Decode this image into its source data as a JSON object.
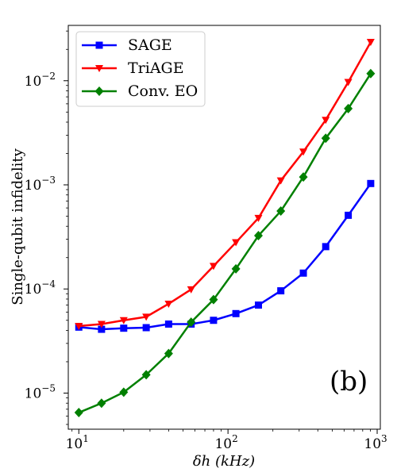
{
  "chart_data": {
    "type": "line",
    "xlabel": "δh (kHz)",
    "ylabel": "Single-qubit infidelity",
    "xscale": "log",
    "yscale": "log",
    "xlim": [
      8.5,
      1050
    ],
    "ylim": [
      4.5e-06,
      0.034
    ],
    "grid": false,
    "legend_position": "top-left",
    "annotation": "(b)",
    "x_ticks": [
      {
        "value": 10,
        "base": "10",
        "exp": "1"
      },
      {
        "value": 100,
        "base": "10",
        "exp": "2"
      },
      {
        "value": 1000,
        "base": "10",
        "exp": "3"
      }
    ],
    "y_ticks": [
      {
        "value": 1e-05,
        "base": "10",
        "exp": "−5"
      },
      {
        "value": 0.0001,
        "base": "10",
        "exp": "−4"
      },
      {
        "value": 0.001,
        "base": "10",
        "exp": "−3"
      },
      {
        "value": 0.01,
        "base": "10",
        "exp": "−2"
      }
    ],
    "x": [
      10,
      14.2,
      20,
      28.3,
      40,
      56.6,
      80,
      113,
      160,
      226,
      320,
      452,
      640,
      905
    ],
    "series": [
      {
        "name": "SAGE",
        "color": "#0000ff",
        "marker": "square",
        "values": [
          4.3e-05,
          4.1e-05,
          4.2e-05,
          4.25e-05,
          4.6e-05,
          4.6e-05,
          5e-05,
          5.8e-05,
          7e-05,
          9.6e-05,
          0.000142,
          0.000255,
          0.00051,
          0.00103
        ]
      },
      {
        "name": "TriAGE",
        "color": "#ff0000",
        "marker": "triangle-down",
        "values": [
          4.4e-05,
          4.6e-05,
          5e-05,
          5.4e-05,
          7.2e-05,
          9.9e-05,
          0.000166,
          0.00028,
          0.00048,
          0.0011,
          0.00208,
          0.0042,
          0.0097,
          0.0235
        ]
      },
      {
        "name": "Conv. EO",
        "color": "#008000",
        "marker": "diamond",
        "values": [
          6.5e-06,
          8e-06,
          1.02e-05,
          1.5e-05,
          2.4e-05,
          4.8e-05,
          7.9e-05,
          0.000156,
          0.000325,
          0.00056,
          0.00119,
          0.0028,
          0.0054,
          0.0117
        ]
      }
    ]
  }
}
